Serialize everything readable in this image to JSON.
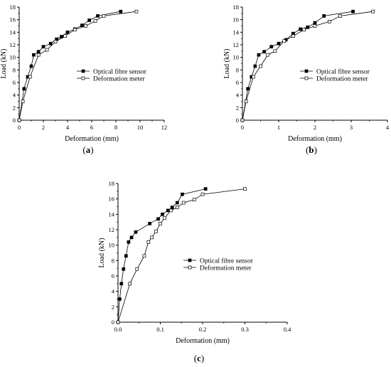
{
  "chart_data": [
    {
      "type": "line",
      "panel_label": "(a)",
      "panel_open": "(",
      "panel_letter": "a",
      "panel_close": ")",
      "xlabel": "Deformation (mm)",
      "ylabel": "Load (kN)",
      "xlim": [
        0,
        12
      ],
      "ylim": [
        0,
        18
      ],
      "xticks": [
        0,
        2,
        4,
        6,
        8,
        10,
        12
      ],
      "yticks": [
        0,
        2,
        4,
        6,
        8,
        10,
        12,
        14,
        16,
        18
      ],
      "legend_position": "center-right",
      "grid": false,
      "series": [
        {
          "name": "Optical fibre sensor",
          "marker": "filled-square",
          "x": [
            0,
            0.4,
            0.7,
            1.0,
            1.2,
            1.6,
            2.0,
            2.6,
            3.1,
            3.5,
            4.0,
            4.6,
            5.2,
            5.8,
            6.5,
            8.4
          ],
          "y": [
            0,
            5.0,
            6.9,
            8.6,
            10.4,
            10.9,
            11.7,
            12.2,
            12.9,
            13.3,
            14.0,
            14.5,
            15.1,
            15.9,
            16.6,
            17.3
          ]
        },
        {
          "name": "Deformation meter",
          "marker": "open-square",
          "x": [
            0,
            0.3,
            0.9,
            1.6,
            2.3,
            3.0,
            3.8,
            4.6,
            5.5,
            6.3,
            7.0,
            9.7
          ],
          "y": [
            0,
            3.0,
            6.9,
            10.4,
            11.2,
            12.5,
            13.4,
            14.4,
            15.0,
            15.8,
            16.6,
            17.3
          ]
        }
      ]
    },
    {
      "type": "line",
      "panel_label": "(b)",
      "panel_open": "(",
      "panel_letter": "b",
      "panel_close": ")",
      "xlabel": "Deformation (mm)",
      "ylabel": "Load (kN)",
      "xlim": [
        0,
        4
      ],
      "ylim": [
        0,
        18
      ],
      "xticks": [
        0,
        1,
        2,
        3,
        4
      ],
      "yticks": [
        0,
        2,
        4,
        6,
        8,
        10,
        12,
        14,
        16,
        18
      ],
      "legend_position": "center-right",
      "grid": false,
      "series": [
        {
          "name": "Optical fibre sensor",
          "marker": "filled-square",
          "x": [
            0,
            0.15,
            0.25,
            0.35,
            0.45,
            0.6,
            0.8,
            1.0,
            1.2,
            1.4,
            1.6,
            1.8,
            2.0,
            2.25,
            3.05
          ],
          "y": [
            0,
            5.0,
            6.9,
            8.6,
            10.4,
            10.9,
            11.7,
            12.2,
            12.8,
            13.8,
            14.5,
            14.8,
            15.5,
            16.6,
            17.3
          ]
        },
        {
          "name": "Deformation meter",
          "marker": "open-square",
          "x": [
            0,
            0.1,
            0.3,
            0.5,
            0.7,
            0.9,
            1.15,
            1.4,
            1.7,
            2.0,
            2.4,
            2.7,
            3.6
          ],
          "y": [
            0,
            3.0,
            6.9,
            8.6,
            10.4,
            11.0,
            12.6,
            13.4,
            14.4,
            15.0,
            15.7,
            16.6,
            17.3
          ]
        }
      ]
    },
    {
      "type": "line",
      "panel_label": "(c)",
      "panel_open": "(",
      "panel_letter": "c",
      "panel_close": ")",
      "xlabel": "Deformation (mm)",
      "ylabel": "Load (kN)",
      "xlim": [
        0,
        0.4
      ],
      "ylim": [
        0,
        18
      ],
      "xticks": [
        0.0,
        0.1,
        0.2,
        0.3,
        0.4
      ],
      "yticks": [
        0,
        2,
        4,
        6,
        8,
        10,
        12,
        14,
        16,
        18
      ],
      "legend_position": "center-right",
      "grid": false,
      "series": [
        {
          "name": "Optical fibre sensor",
          "marker": "filled-square",
          "x": [
            0,
            0.004,
            0.008,
            0.013,
            0.019,
            0.025,
            0.032,
            0.042,
            0.075,
            0.095,
            0.105,
            0.118,
            0.128,
            0.14,
            0.152,
            0.207
          ],
          "y": [
            0,
            3.0,
            5.0,
            6.9,
            8.6,
            10.4,
            11.0,
            11.7,
            12.8,
            13.4,
            14.0,
            14.5,
            14.9,
            15.5,
            16.6,
            17.3
          ]
        },
        {
          "name": "Deformation meter",
          "marker": "open-square",
          "x": [
            0,
            0.028,
            0.045,
            0.062,
            0.072,
            0.08,
            0.09,
            0.1,
            0.11,
            0.125,
            0.14,
            0.155,
            0.18,
            0.2,
            0.3
          ],
          "y": [
            0,
            5.0,
            6.9,
            8.6,
            10.4,
            11.0,
            11.8,
            12.8,
            13.5,
            14.5,
            14.9,
            15.5,
            15.9,
            16.6,
            17.3
          ]
        }
      ]
    }
  ]
}
